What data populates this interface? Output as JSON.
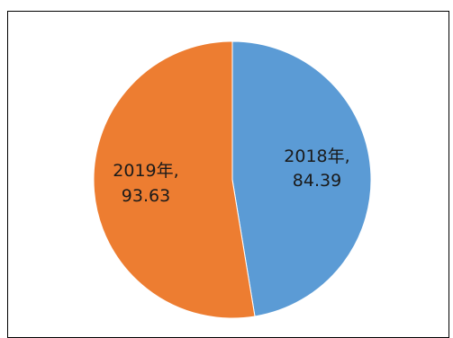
{
  "chart_data": {
    "type": "pie",
    "title": "",
    "categories": [
      "2018年",
      "2019年"
    ],
    "values": [
      84.39,
      93.63
    ],
    "colors": [
      "#5b9bd5",
      "#ed7d31"
    ],
    "labels": [
      {
        "category": "2018年,",
        "value": "84.39"
      },
      {
        "category": "2019年,",
        "value": "93.63"
      }
    ],
    "legend": "none",
    "start_angle": "12 o'clock, clockwise"
  }
}
